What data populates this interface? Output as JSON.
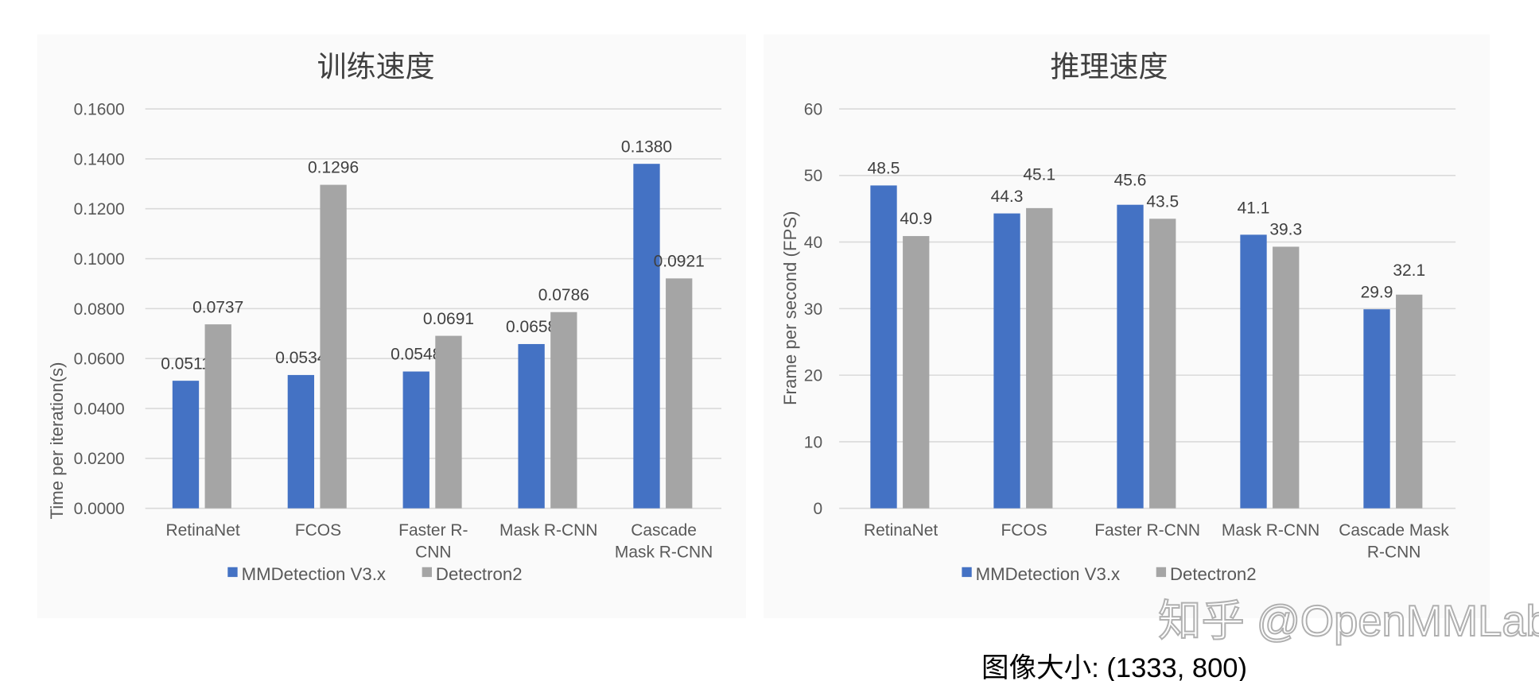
{
  "colors": {
    "series1": "#4472C4",
    "series2": "#A5A5A5",
    "grid": "#D9D9D9",
    "panel": "#FAFAFA"
  },
  "legend": [
    "MMDetection V3.x",
    "Detectron2"
  ],
  "watermark": "知乎 @OpenMMLab",
  "caption": "图像大小: (1333, 800)",
  "chart_data": [
    {
      "type": "bar",
      "title": "训练速度",
      "ylabel": "Time per iteration(s)",
      "xlabel": "",
      "ylim": [
        0,
        0.16
      ],
      "yticks": [
        "0.0000",
        "0.0200",
        "0.0400",
        "0.0600",
        "0.0800",
        "0.1000",
        "0.1200",
        "0.1400",
        "0.1600"
      ],
      "grid": true,
      "legend_position": "bottom",
      "categories": [
        [
          "RetinaNet"
        ],
        [
          "FCOS"
        ],
        [
          "Faster R-",
          "CNN"
        ],
        [
          "Mask R-CNN"
        ],
        [
          "Cascade",
          "Mask R-CNN"
        ]
      ],
      "series": [
        {
          "name": "MMDetection V3.x",
          "values": [
            0.0511,
            0.0534,
            0.0548,
            0.0658,
            0.138
          ],
          "labels": [
            "0.0511",
            "0.0534",
            "0.0548",
            "0.0658",
            "0.1380"
          ]
        },
        {
          "name": "Detectron2",
          "values": [
            0.0737,
            0.1296,
            0.0691,
            0.0786,
            0.0921
          ],
          "labels": [
            "0.0737",
            "0.1296",
            "0.0691",
            "0.0786",
            "0.0921"
          ]
        }
      ]
    },
    {
      "type": "bar",
      "title": "推理速度",
      "ylabel": "Frame per second (FPS)",
      "xlabel": "",
      "ylim": [
        0,
        60
      ],
      "yticks": [
        "0",
        "10",
        "20",
        "30",
        "40",
        "50",
        "60"
      ],
      "grid": true,
      "legend_position": "bottom",
      "categories": [
        [
          "RetinaNet"
        ],
        [
          "FCOS"
        ],
        [
          "Faster R-CNN"
        ],
        [
          "Mask R-CNN"
        ],
        [
          "Cascade Mask",
          "R-CNN"
        ]
      ],
      "series": [
        {
          "name": "MMDetection V3.x",
          "values": [
            48.5,
            44.3,
            45.6,
            41.1,
            29.9
          ],
          "labels": [
            "48.5",
            "44.3",
            "45.6",
            "41.1",
            "29.9"
          ]
        },
        {
          "name": "Detectron2",
          "values": [
            40.9,
            45.1,
            43.5,
            39.3,
            32.1
          ],
          "labels": [
            "40.9",
            "45.1",
            "43.5",
            "39.3",
            "32.1"
          ]
        }
      ]
    }
  ]
}
